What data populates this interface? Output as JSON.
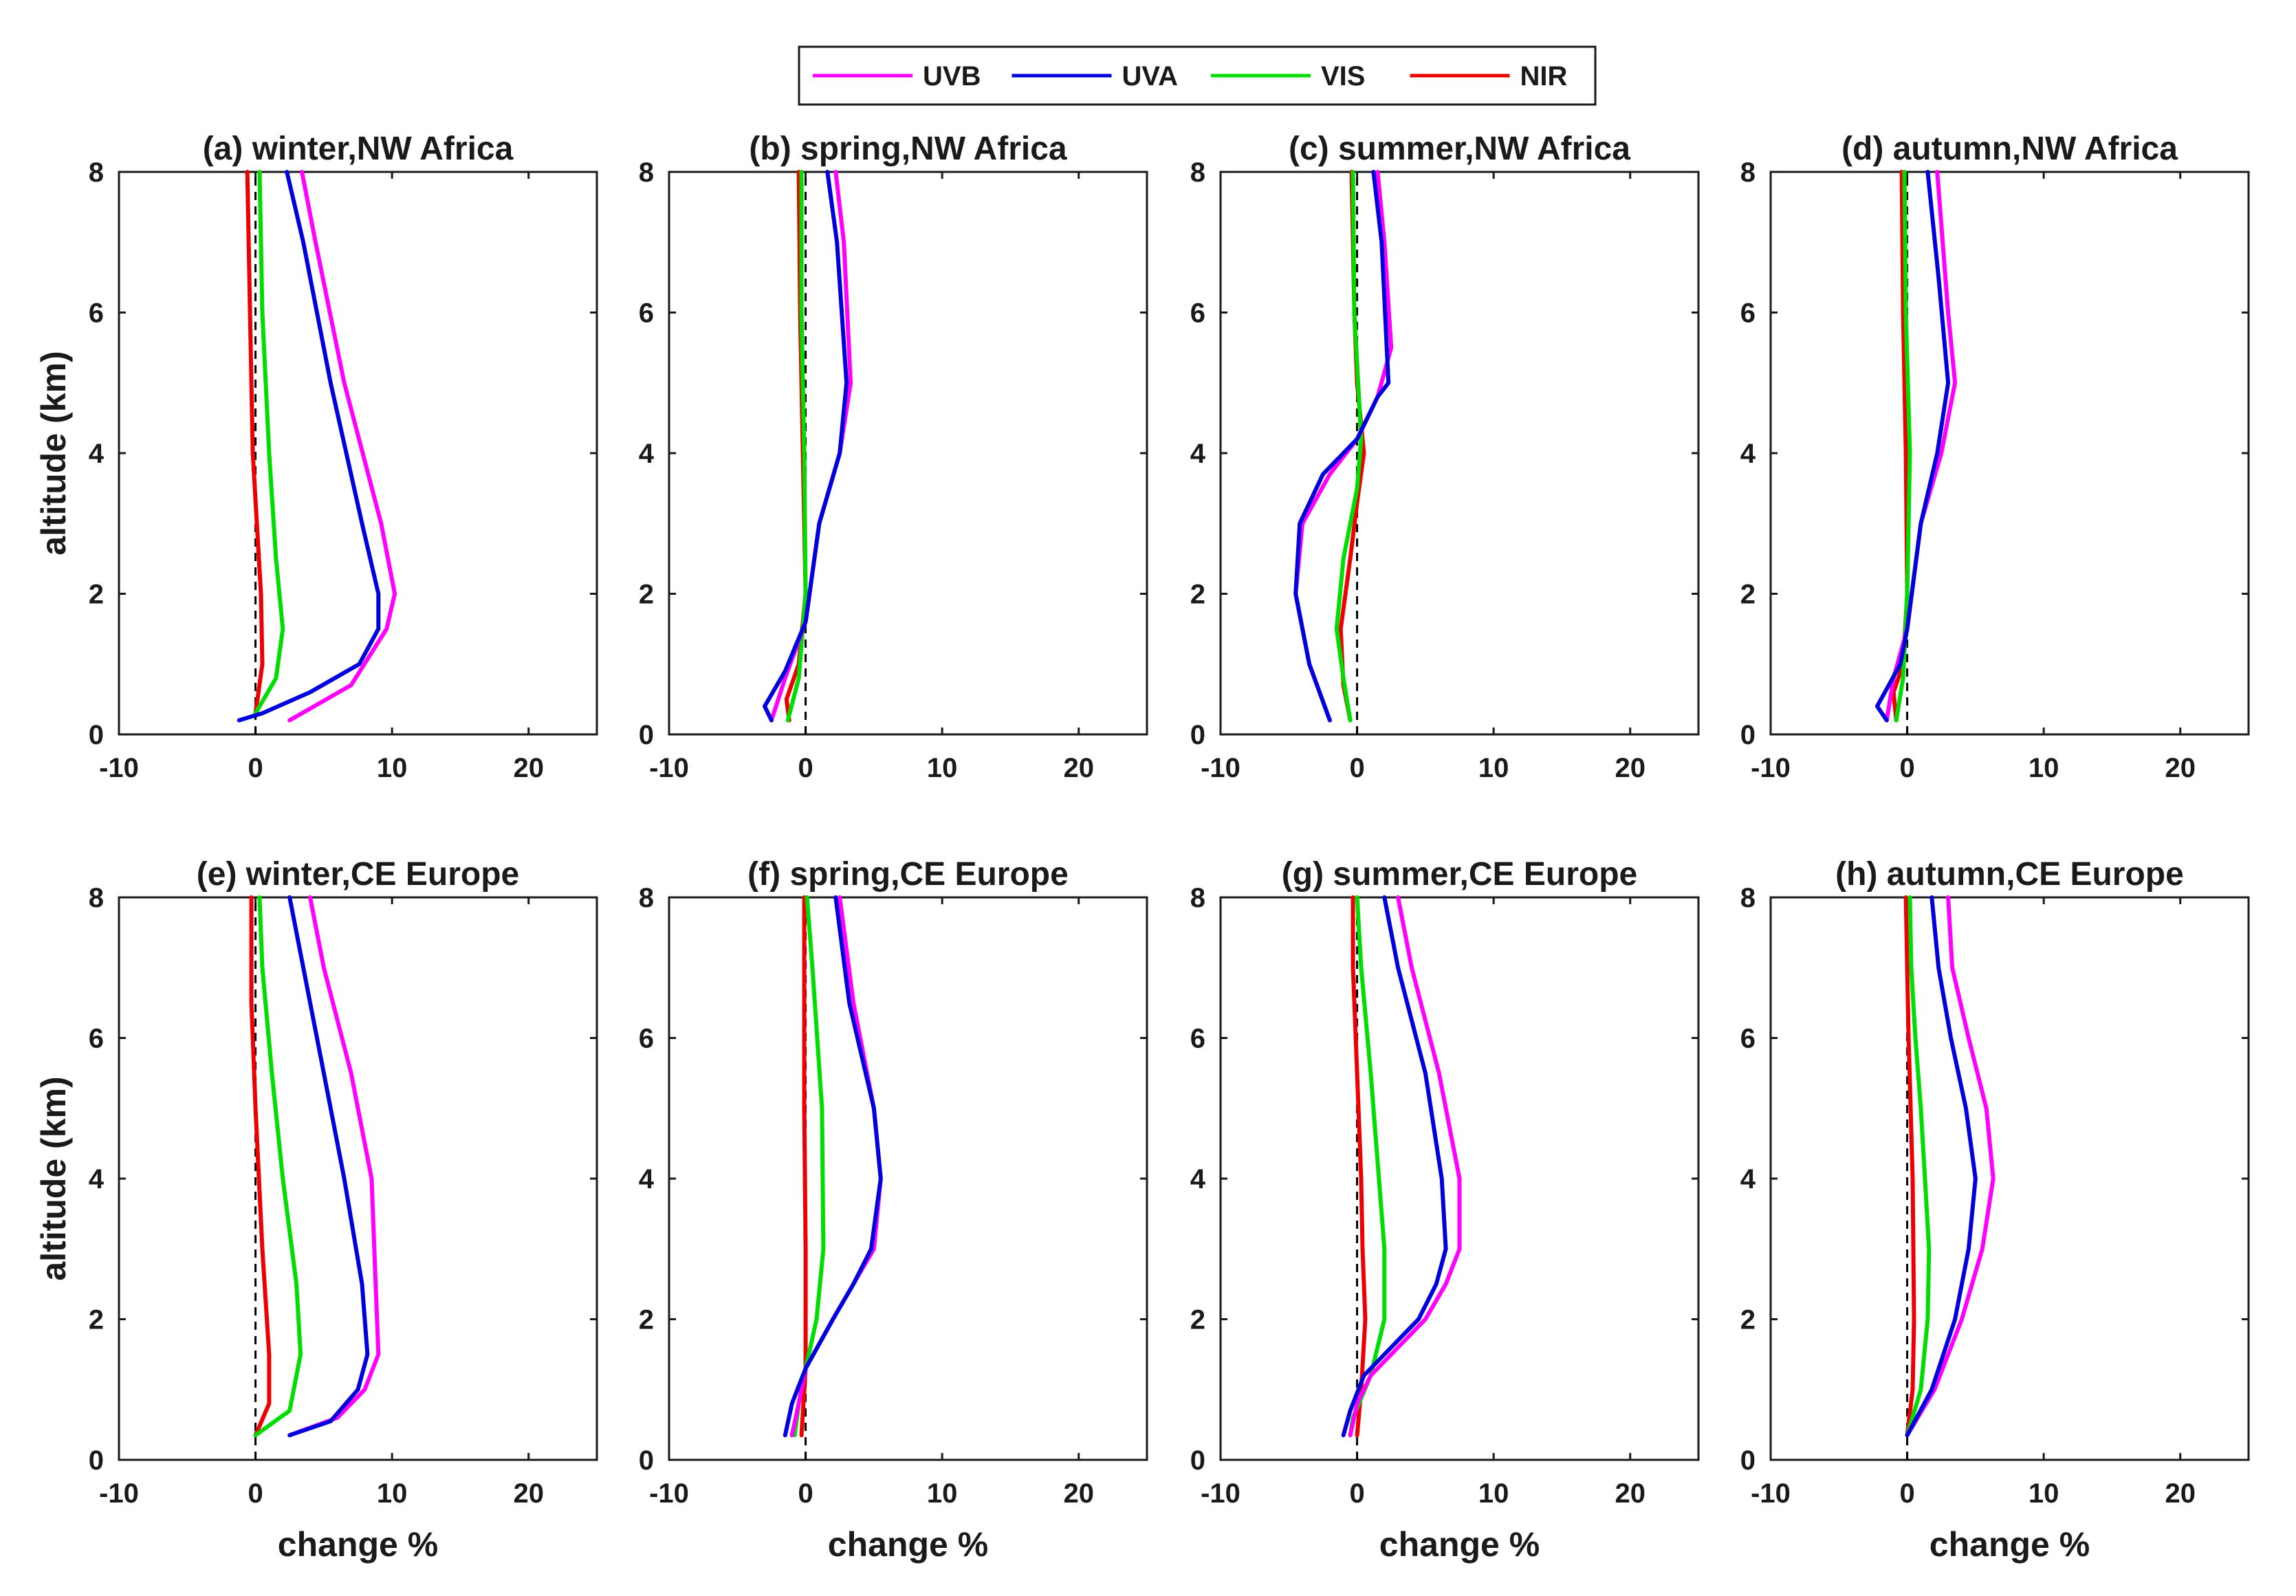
{
  "chart_data": {
    "type": "line",
    "legend": [
      {
        "name": "UVB",
        "color": "#ff00ff"
      },
      {
        "name": "UVA",
        "color": "#0000dd"
      },
      {
        "name": "VIS",
        "color": "#00dd00"
      },
      {
        "name": "NIR",
        "color": "#ee0000"
      }
    ],
    "xlabel": "change %",
    "ylabel": "altitude (km)",
    "xlim": [
      -10,
      25
    ],
    "ylim": [
      0,
      8
    ],
    "xticks": [
      -10,
      0,
      10,
      20
    ],
    "yticks": [
      0,
      2,
      4,
      6,
      8
    ],
    "reference_line": {
      "x": 0,
      "style": "dashed"
    },
    "panels": [
      {
        "title": "(a) winter,NW Africa",
        "series": {
          "UVB": [
            [
              2.5,
              0.2
            ],
            [
              7,
              0.7
            ],
            [
              9.6,
              1.5
            ],
            [
              10.2,
              2
            ],
            [
              9.2,
              3
            ],
            [
              6.5,
              5
            ],
            [
              4.4,
              7
            ],
            [
              3.4,
              8
            ]
          ],
          "UVA": [
            [
              -1.2,
              0.2
            ],
            [
              0.5,
              0.3
            ],
            [
              4,
              0.6
            ],
            [
              7.6,
              1
            ],
            [
              9,
              1.5
            ],
            [
              9,
              2
            ],
            [
              7.8,
              3
            ],
            [
              5.5,
              5
            ],
            [
              3.5,
              7
            ],
            [
              2.3,
              8
            ]
          ],
          "VIS": [
            [
              0,
              0.3
            ],
            [
              1.5,
              0.8
            ],
            [
              2,
              1.5
            ],
            [
              1.5,
              2.5
            ],
            [
              1,
              4
            ],
            [
              0.5,
              6
            ],
            [
              0.3,
              8
            ]
          ],
          "NIR": [
            [
              0,
              0.3
            ],
            [
              0.5,
              1
            ],
            [
              0.4,
              2
            ],
            [
              -0.2,
              4
            ],
            [
              -0.4,
              6
            ],
            [
              -0.6,
              8
            ]
          ]
        }
      },
      {
        "title": "(b) spring,NW Africa",
        "series": {
          "UVB": [
            [
              -2.5,
              0.2
            ],
            [
              -1.5,
              0.8
            ],
            [
              0,
              1.6
            ],
            [
              1,
              3
            ],
            [
              2.5,
              4
            ],
            [
              3.3,
              5
            ],
            [
              2.8,
              7
            ],
            [
              2.2,
              8
            ]
          ],
          "UVA": [
            [
              -2.5,
              0.2
            ],
            [
              -3,
              0.4
            ],
            [
              -1.5,
              0.9
            ],
            [
              0,
              1.6
            ],
            [
              1,
              3
            ],
            [
              2.5,
              4
            ],
            [
              3,
              5
            ],
            [
              2.3,
              7
            ],
            [
              1.6,
              8
            ]
          ],
          "VIS": [
            [
              -1.3,
              0.2
            ],
            [
              -0.5,
              0.8
            ],
            [
              0,
              2
            ],
            [
              -0.1,
              4
            ],
            [
              -0.3,
              6
            ],
            [
              -0.3,
              8
            ]
          ],
          "NIR": [
            [
              -1.2,
              0.2
            ],
            [
              -1.4,
              0.5
            ],
            [
              -0.5,
              1
            ],
            [
              0,
              2
            ],
            [
              -0.2,
              4
            ],
            [
              -0.4,
              6
            ],
            [
              -0.5,
              8
            ]
          ]
        }
      },
      {
        "title": "(c) summer,NW Africa",
        "series": {
          "UVB": [
            [
              -2,
              0.2
            ],
            [
              -3.5,
              1
            ],
            [
              -4.5,
              2
            ],
            [
              -4,
              3
            ],
            [
              -2,
              3.7
            ],
            [
              0,
              4.2
            ],
            [
              1.5,
              4.8
            ],
            [
              2.5,
              5.5
            ],
            [
              2,
              7
            ],
            [
              1.5,
              8
            ]
          ],
          "UVA": [
            [
              -2,
              0.2
            ],
            [
              -3.5,
              1
            ],
            [
              -4.5,
              2
            ],
            [
              -4.2,
              3
            ],
            [
              -2.5,
              3.7
            ],
            [
              0,
              4.2
            ],
            [
              1.5,
              4.8
            ],
            [
              2.3,
              5
            ],
            [
              1.8,
              7
            ],
            [
              1.2,
              8
            ]
          ],
          "VIS": [
            [
              -0.5,
              0.2
            ],
            [
              -1,
              0.8
            ],
            [
              -1.5,
              1.5
            ],
            [
              -1,
              2.5
            ],
            [
              0,
              3.5
            ],
            [
              0.3,
              4.2
            ],
            [
              -0.2,
              6
            ],
            [
              -0.3,
              8
            ]
          ],
          "NIR": [
            [
              -0.5,
              0.2
            ],
            [
              -1,
              0.7
            ],
            [
              -1.2,
              1.5
            ],
            [
              -0.5,
              2.5
            ],
            [
              0,
              3.3
            ],
            [
              0.5,
              4
            ],
            [
              0,
              5
            ],
            [
              -0.2,
              6
            ],
            [
              -0.4,
              8
            ]
          ]
        }
      },
      {
        "title": "(d) autumn,NW Africa",
        "series": {
          "UVB": [
            [
              -1.5,
              0.2
            ],
            [
              -1,
              0.8
            ],
            [
              0,
              1.5
            ],
            [
              1,
              3
            ],
            [
              2.5,
              4
            ],
            [
              3.5,
              5
            ],
            [
              3,
              6
            ],
            [
              2.2,
              8
            ]
          ],
          "UVA": [
            [
              -1.5,
              0.2
            ],
            [
              -2.2,
              0.4
            ],
            [
              -0.5,
              1
            ],
            [
              0,
              1.5
            ],
            [
              1,
              3
            ],
            [
              2.2,
              4
            ],
            [
              3,
              5
            ],
            [
              2.3,
              6.5
            ],
            [
              1.5,
              8
            ]
          ],
          "VIS": [
            [
              -0.8,
              0.2
            ],
            [
              -0.3,
              0.8
            ],
            [
              0,
              2
            ],
            [
              0.2,
              4
            ],
            [
              -0.1,
              6
            ],
            [
              -0.2,
              8
            ]
          ],
          "NIR": [
            [
              -0.8,
              0.2
            ],
            [
              -1,
              0.6
            ],
            [
              -0.3,
              1
            ],
            [
              0,
              2
            ],
            [
              -0.1,
              4
            ],
            [
              -0.3,
              6
            ],
            [
              -0.4,
              8
            ]
          ]
        }
      },
      {
        "title": "(e) winter,CE Europe",
        "series": {
          "UVB": [
            [
              2.5,
              0.35
            ],
            [
              6,
              0.6
            ],
            [
              8,
              1
            ],
            [
              9,
              1.5
            ],
            [
              8.8,
              2.5
            ],
            [
              8.5,
              4
            ],
            [
              7,
              5.5
            ],
            [
              5,
              7
            ],
            [
              4,
              8
            ]
          ],
          "UVA": [
            [
              2.5,
              0.35
            ],
            [
              5.5,
              0.55
            ],
            [
              7.5,
              1
            ],
            [
              8.2,
              1.5
            ],
            [
              7.8,
              2.5
            ],
            [
              6.5,
              4
            ],
            [
              5,
              5.5
            ],
            [
              3.5,
              7
            ],
            [
              2.5,
              8
            ]
          ],
          "VIS": [
            [
              0,
              0.35
            ],
            [
              2.5,
              0.7
            ],
            [
              3.3,
              1.5
            ],
            [
              3,
              2.5
            ],
            [
              2,
              4
            ],
            [
              1.2,
              5.5
            ],
            [
              0.5,
              7
            ],
            [
              0.3,
              8
            ]
          ],
          "NIR": [
            [
              0,
              0.35
            ],
            [
              1,
              0.8
            ],
            [
              1,
              1.5
            ],
            [
              0.5,
              3
            ],
            [
              0,
              5
            ],
            [
              -0.3,
              6.5
            ],
            [
              -0.3,
              8
            ]
          ]
        }
      },
      {
        "title": "(f) spring,CE Europe",
        "series": {
          "UVB": [
            [
              -1,
              0.35
            ],
            [
              -0.5,
              0.8
            ],
            [
              0,
              1.3
            ],
            [
              2,
              2
            ],
            [
              3.5,
              2.5
            ],
            [
              5,
              3
            ],
            [
              5.5,
              4
            ],
            [
              5,
              5
            ],
            [
              3.5,
              6.5
            ],
            [
              2.5,
              8
            ]
          ],
          "UVA": [
            [
              -1.5,
              0.35
            ],
            [
              -1,
              0.8
            ],
            [
              0,
              1.3
            ],
            [
              2,
              2
            ],
            [
              3.5,
              2.5
            ],
            [
              4.8,
              3
            ],
            [
              5.5,
              4
            ],
            [
              5,
              5
            ],
            [
              3.2,
              6.5
            ],
            [
              2.2,
              8
            ]
          ],
          "VIS": [
            [
              -0.8,
              0.35
            ],
            [
              -0.5,
              0.8
            ],
            [
              0,
              1.3
            ],
            [
              0.8,
              2
            ],
            [
              1.3,
              3
            ],
            [
              1.2,
              5
            ],
            [
              0.5,
              7
            ],
            [
              0.1,
              8
            ]
          ],
          "NIR": [
            [
              -0.3,
              0.35
            ],
            [
              0,
              1.3
            ],
            [
              0,
              3
            ],
            [
              -0.1,
              5
            ],
            [
              -0.1,
              8
            ]
          ]
        }
      },
      {
        "title": "(g) summer,CE Europe",
        "series": {
          "UVB": [
            [
              -0.5,
              0.35
            ],
            [
              0,
              0.8
            ],
            [
              1,
              1.2
            ],
            [
              3.5,
              1.7
            ],
            [
              5,
              2
            ],
            [
              6.5,
              2.5
            ],
            [
              7.5,
              3
            ],
            [
              7.5,
              4
            ],
            [
              6,
              5.5
            ],
            [
              4,
              7
            ],
            [
              3,
              8
            ]
          ],
          "UVA": [
            [
              -1,
              0.35
            ],
            [
              -0.5,
              0.7
            ],
            [
              0.5,
              1.2
            ],
            [
              3,
              1.7
            ],
            [
              4.5,
              2
            ],
            [
              5.8,
              2.5
            ],
            [
              6.5,
              3
            ],
            [
              6.2,
              4
            ],
            [
              5,
              5.5
            ],
            [
              3,
              7
            ],
            [
              2,
              8
            ]
          ],
          "VIS": [
            [
              -0.5,
              0.35
            ],
            [
              -0.3,
              0.6
            ],
            [
              1,
              1.2
            ],
            [
              2,
              2
            ],
            [
              2,
              3
            ],
            [
              1.6,
              4
            ],
            [
              1,
              5.5
            ],
            [
              0.3,
              7
            ],
            [
              0,
              8
            ]
          ],
          "NIR": [
            [
              0,
              0.35
            ],
            [
              0.3,
              1
            ],
            [
              0.6,
              2
            ],
            [
              0.4,
              3
            ],
            [
              0.3,
              4
            ],
            [
              0,
              5.5
            ],
            [
              -0.3,
              7
            ],
            [
              -0.3,
              8
            ]
          ]
        }
      },
      {
        "title": "(h) autumn,CE Europe",
        "series": {
          "UVB": [
            [
              0,
              0.35
            ],
            [
              2,
              1
            ],
            [
              4,
              2
            ],
            [
              5.5,
              3
            ],
            [
              6.3,
              4
            ],
            [
              5.8,
              5
            ],
            [
              4.5,
              6
            ],
            [
              3.3,
              7
            ],
            [
              3,
              8
            ]
          ],
          "UVA": [
            [
              0,
              0.35
            ],
            [
              1.8,
              1
            ],
            [
              3.5,
              2
            ],
            [
              4.5,
              3
            ],
            [
              5,
              4
            ],
            [
              4.3,
              5
            ],
            [
              3.2,
              6
            ],
            [
              2.3,
              7
            ],
            [
              1.8,
              8
            ]
          ],
          "VIS": [
            [
              0,
              0.35
            ],
            [
              1,
              1
            ],
            [
              1.5,
              2
            ],
            [
              1.6,
              3
            ],
            [
              1.3,
              4
            ],
            [
              1,
              5
            ],
            [
              0.6,
              6
            ],
            [
              0.3,
              7
            ],
            [
              0.2,
              8
            ]
          ],
          "NIR": [
            [
              0,
              0.35
            ],
            [
              0.4,
              1
            ],
            [
              0.5,
              2
            ],
            [
              0.4,
              4
            ],
            [
              0.1,
              6
            ],
            [
              -0.1,
              8
            ]
          ]
        }
      }
    ]
  }
}
